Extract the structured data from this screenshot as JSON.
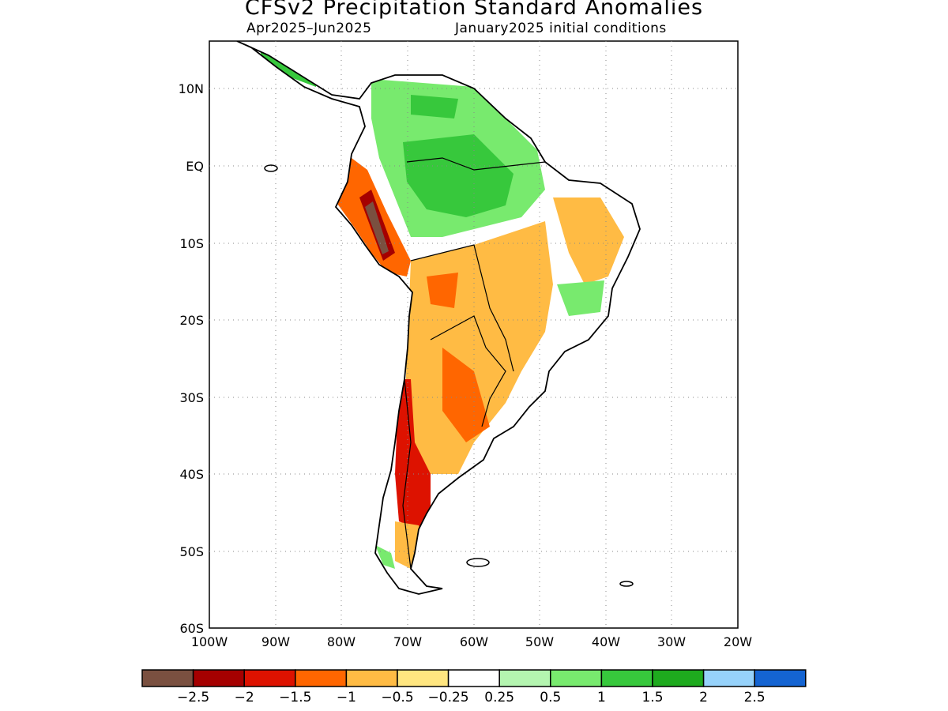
{
  "title": "CFSv2 Precipitation Standard Anomalies",
  "subtitle_period": "Apr2025–Jun2025",
  "subtitle_ic": "January2025 initial conditions",
  "lat_labels": [
    "10N",
    "EQ",
    "10S",
    "20S",
    "30S",
    "40S",
    "50S",
    "60S"
  ],
  "lon_labels": [
    "100W",
    "90W",
    "80W",
    "70W",
    "60W",
    "50W",
    "40W",
    "30W",
    "20W"
  ],
  "colorbar": {
    "colors": [
      "#7a5040",
      "#a50000",
      "#dd1200",
      "#ff6600",
      "#ffbb44",
      "#ffe680",
      "#ffffff",
      "#b4f5b0",
      "#78ea6e",
      "#37c83c",
      "#1eaa1e",
      "#96d2fa",
      "#1464d2"
    ],
    "labels": [
      "−2.5",
      "−2",
      "−1.5",
      "−1",
      "−0.5",
      "−0.25",
      "0.25",
      "0.5",
      "1",
      "1.5",
      "2",
      "2.5"
    ]
  }
}
